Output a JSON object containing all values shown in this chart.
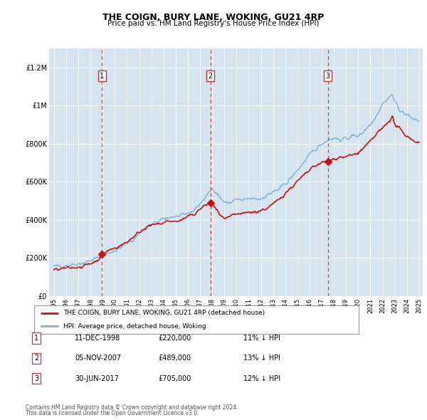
{
  "title": "THE COIGN, BURY LANE, WOKING, GU21 4RP",
  "subtitle": "Price paid vs. HM Land Registry's House Price Index (HPI)",
  "plot_bg_color": "#d6e4f0",
  "hpi_color": "#7aaed6",
  "price_color": "#cc1111",
  "ylim": [
    0,
    1300000
  ],
  "yticks": [
    0,
    200000,
    400000,
    600000,
    800000,
    1000000,
    1200000
  ],
  "ytick_labels": [
    "£0",
    "£200K",
    "£400K",
    "£600K",
    "£800K",
    "£1M",
    "£1.2M"
  ],
  "sales": [
    {
      "label": 1,
      "date": "11-DEC-1998",
      "year": 1998.95,
      "price": 220000
    },
    {
      "label": 2,
      "date": "05-NOV-2007",
      "year": 2007.85,
      "price": 489000
    },
    {
      "label": 3,
      "date": "30-JUN-2017",
      "year": 2017.5,
      "price": 705000
    }
  ],
  "legend_label_price": "THE COIGN, BURY LANE, WOKING, GU21 4RP (detached house)",
  "legend_label_hpi": "HPI: Average price, detached house, Woking",
  "footer1": "Contains HM Land Registry data © Crown copyright and database right 2024.",
  "footer2": "This data is licensed under the Open Government Licence v3.0.",
  "table_rows": [
    [
      1,
      "11-DEC-1998",
      "£220,000",
      "11% ↓ HPI"
    ],
    [
      2,
      "05-NOV-2007",
      "£489,000",
      "13% ↓ HPI"
    ],
    [
      3,
      "30-JUN-2017",
      "£705,000",
      "12% ↓ HPI"
    ]
  ],
  "hpi_breakpoints": [
    [
      1995.0,
      155000
    ],
    [
      1996.0,
      162000
    ],
    [
      1997.5,
      175000
    ],
    [
      1999.0,
      210000
    ],
    [
      2000.5,
      255000
    ],
    [
      2001.5,
      295000
    ],
    [
      2002.5,
      360000
    ],
    [
      2003.5,
      390000
    ],
    [
      2004.5,
      415000
    ],
    [
      2005.5,
      420000
    ],
    [
      2006.5,
      450000
    ],
    [
      2007.5,
      520000
    ],
    [
      2008.0,
      570000
    ],
    [
      2008.5,
      530000
    ],
    [
      2009.0,
      490000
    ],
    [
      2009.5,
      490000
    ],
    [
      2010.0,
      510000
    ],
    [
      2010.5,
      500000
    ],
    [
      2011.0,
      510000
    ],
    [
      2011.5,
      510000
    ],
    [
      2012.0,
      510000
    ],
    [
      2012.5,
      530000
    ],
    [
      2013.0,
      545000
    ],
    [
      2013.5,
      560000
    ],
    [
      2014.0,
      590000
    ],
    [
      2014.5,
      620000
    ],
    [
      2015.0,
      660000
    ],
    [
      2015.5,
      700000
    ],
    [
      2016.0,
      740000
    ],
    [
      2016.5,
      770000
    ],
    [
      2017.0,
      800000
    ],
    [
      2017.5,
      820000
    ],
    [
      2018.0,
      830000
    ],
    [
      2018.5,
      820000
    ],
    [
      2019.0,
      825000
    ],
    [
      2019.5,
      840000
    ],
    [
      2020.0,
      840000
    ],
    [
      2020.5,
      870000
    ],
    [
      2021.0,
      900000
    ],
    [
      2021.5,
      950000
    ],
    [
      2022.0,
      1010000
    ],
    [
      2022.5,
      1040000
    ],
    [
      2022.8,
      1060000
    ],
    [
      2023.0,
      1020000
    ],
    [
      2023.5,
      970000
    ],
    [
      2024.0,
      950000
    ],
    [
      2024.5,
      930000
    ],
    [
      2025.0,
      920000
    ]
  ],
  "price_breakpoints": [
    [
      1995.0,
      137000
    ],
    [
      1996.0,
      145000
    ],
    [
      1997.5,
      158000
    ],
    [
      1998.5,
      185000
    ],
    [
      1999.0,
      220000
    ],
    [
      1999.5,
      240000
    ],
    [
      2000.5,
      265000
    ],
    [
      2001.0,
      285000
    ],
    [
      2002.0,
      335000
    ],
    [
      2002.5,
      360000
    ],
    [
      2003.0,
      370000
    ],
    [
      2003.5,
      375000
    ],
    [
      2004.0,
      385000
    ],
    [
      2004.5,
      395000
    ],
    [
      2005.0,
      390000
    ],
    [
      2005.5,
      400000
    ],
    [
      2006.0,
      415000
    ],
    [
      2006.5,
      430000
    ],
    [
      2007.0,
      455000
    ],
    [
      2007.5,
      480000
    ],
    [
      2007.85,
      489000
    ],
    [
      2008.0,
      480000
    ],
    [
      2008.5,
      440000
    ],
    [
      2009.0,
      400000
    ],
    [
      2009.5,
      415000
    ],
    [
      2010.0,
      430000
    ],
    [
      2010.5,
      430000
    ],
    [
      2011.0,
      440000
    ],
    [
      2011.5,
      440000
    ],
    [
      2012.0,
      450000
    ],
    [
      2012.5,
      460000
    ],
    [
      2013.0,
      480000
    ],
    [
      2013.5,
      510000
    ],
    [
      2014.0,
      540000
    ],
    [
      2014.5,
      570000
    ],
    [
      2015.0,
      600000
    ],
    [
      2015.5,
      630000
    ],
    [
      2016.0,
      660000
    ],
    [
      2016.5,
      685000
    ],
    [
      2017.0,
      700000
    ],
    [
      2017.5,
      705000
    ],
    [
      2018.0,
      720000
    ],
    [
      2018.5,
      730000
    ],
    [
      2019.0,
      730000
    ],
    [
      2019.5,
      740000
    ],
    [
      2020.0,
      750000
    ],
    [
      2020.5,
      780000
    ],
    [
      2021.0,
      810000
    ],
    [
      2021.5,
      850000
    ],
    [
      2022.0,
      880000
    ],
    [
      2022.5,
      920000
    ],
    [
      2022.8,
      940000
    ],
    [
      2023.0,
      900000
    ],
    [
      2023.5,
      870000
    ],
    [
      2024.0,
      840000
    ],
    [
      2024.5,
      820000
    ],
    [
      2025.0,
      800000
    ]
  ]
}
